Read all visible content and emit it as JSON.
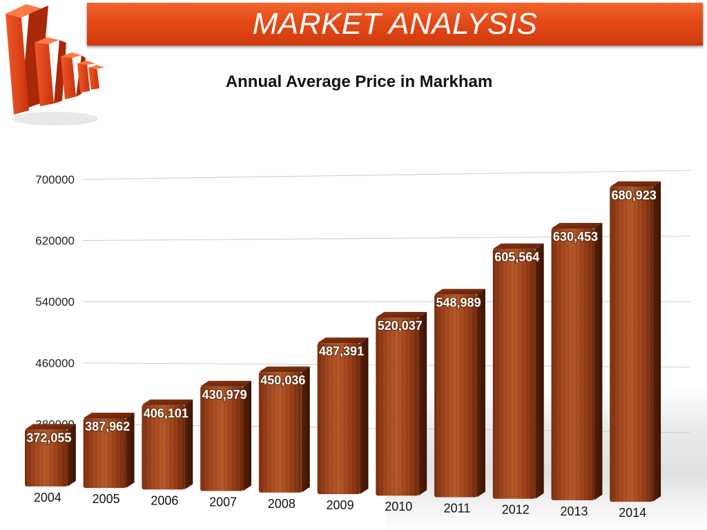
{
  "banner": {
    "title": "MARKET ANALYSIS"
  },
  "icons": {
    "logo": "bar-chart-logo-icon"
  },
  "colors": {
    "banner": "#e44a18",
    "bar_front": "#9a3f1a",
    "bar_top": "#6e2a0f",
    "bar_side": "#4e1c08",
    "grid": "#cccccc"
  },
  "chart_data": {
    "type": "bar",
    "title": "Annual Average Price in Markham",
    "xlabel": "",
    "ylabel": "",
    "categories": [
      "2004",
      "2005",
      "2006",
      "2007",
      "2008",
      "2009",
      "2010",
      "2011",
      "2012",
      "2013",
      "2014"
    ],
    "values": [
      372055,
      387962,
      406101,
      430979,
      450036,
      487391,
      520037,
      548989,
      605564,
      630453,
      680923
    ],
    "value_labels": [
      "372,055",
      "387,962",
      "406,101",
      "430,979",
      "450,036",
      "487,391",
      "520,037",
      "548,989",
      "605,564",
      "630,453",
      "680,923"
    ],
    "yticks": [
      380000,
      460000,
      540000,
      620000,
      700000
    ],
    "ytick_labels": [
      "380000",
      "460000",
      "540000",
      "620000",
      "700000"
    ],
    "grid": true,
    "legend": "none"
  }
}
